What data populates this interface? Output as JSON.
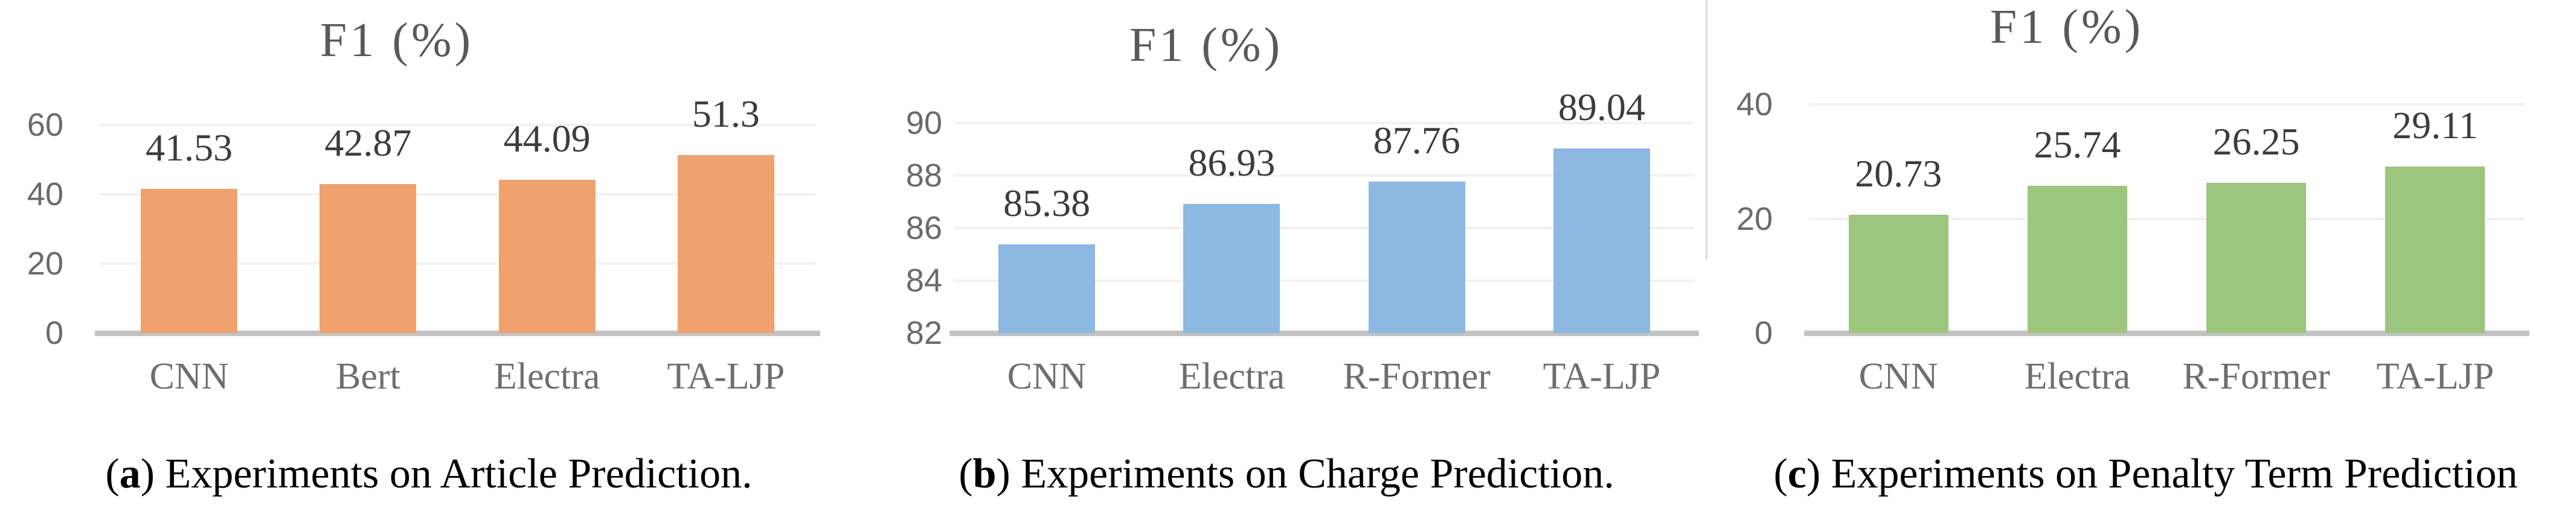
{
  "chart_data": [
    {
      "type": "bar",
      "panel": "a",
      "title": "F1 (%)",
      "categories": [
        "CNN",
        "Bert",
        "Electra",
        "TA-LJP"
      ],
      "values": [
        41.53,
        42.87,
        44.09,
        51.3
      ],
      "value_labels": [
        "41.53",
        "42.87",
        "44.09",
        "51.3"
      ],
      "ylim": [
        0,
        60
      ],
      "yticks": [
        0,
        20,
        40,
        60
      ],
      "grid": true,
      "legend": false,
      "bar_color": "#F0A26E"
    },
    {
      "type": "bar",
      "panel": "b",
      "title": "F1 (%)",
      "categories": [
        "CNN",
        "Electra",
        "R-Former",
        "TA-LJP"
      ],
      "values": [
        85.38,
        86.93,
        87.76,
        89.04
      ],
      "value_labels": [
        "85.38",
        "86.93",
        "87.76",
        "89.04"
      ],
      "ylim": [
        82,
        90
      ],
      "yticks": [
        82,
        84,
        86,
        88,
        90
      ],
      "grid": true,
      "legend": false,
      "bar_color": "#8CB8E2"
    },
    {
      "type": "bar",
      "panel": "c",
      "title": "F1 (%)",
      "categories": [
        "CNN",
        "Electra",
        "R-Former",
        "TA-LJP"
      ],
      "values": [
        20.73,
        25.74,
        26.25,
        29.11
      ],
      "value_labels": [
        "20.73",
        "25.74",
        "26.25",
        "29.11"
      ],
      "ylim": [
        0,
        40
      ],
      "yticks": [
        0,
        20,
        40
      ],
      "grid": true,
      "legend": false,
      "bar_color": "#9CC57E"
    }
  ],
  "captions": [
    {
      "open": "(",
      "letter": "a",
      "rest": ") Experiments on Article Prediction."
    },
    {
      "open": "(",
      "letter": "b",
      "rest": ") Experiments on Charge Prediction."
    },
    {
      "open": "(",
      "letter": "c",
      "rest": ") Experiments on Penalty Term Prediction"
    }
  ],
  "style": {
    "bar_colors": {
      "orange": "#F0A26E",
      "blue": "#8CB8E2",
      "green": "#9CC57E"
    },
    "grid_color": "#F1F1F1",
    "baseline_color": "#C2C2C2",
    "divider_color": "#D9D9D9",
    "title_color": "#595959",
    "tick_color": "#6A6A6A",
    "category_color": "#6E6E6E",
    "value_color": "#3C3C3C",
    "caption_color": "#000000"
  }
}
